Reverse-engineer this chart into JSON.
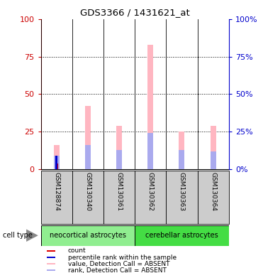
{
  "title": "GDS3366 / 1431621_at",
  "samples": [
    "GSM128874",
    "GSM130340",
    "GSM130361",
    "GSM130362",
    "GSM130363",
    "GSM130364"
  ],
  "value_absent": [
    16,
    42,
    29,
    83,
    25,
    29
  ],
  "rank_absent": [
    9,
    16,
    13,
    24,
    13,
    12
  ],
  "count_values": [
    4,
    0,
    0,
    0,
    0,
    0
  ],
  "percentile_rank": [
    9,
    0,
    0,
    0,
    0,
    0
  ],
  "cell_types": [
    {
      "label": "neocortical astrocytes",
      "color": "#90EE90",
      "start": 0,
      "end": 3
    },
    {
      "label": "cerebellar astrocytes",
      "color": "#44DD44",
      "start": 3,
      "end": 6
    }
  ],
  "bar_color_value_absent": "#FFB6C1",
  "bar_color_rank_absent": "#AAAAEE",
  "bar_color_count": "#DD0000",
  "bar_color_percentile": "#0000CC",
  "ylim_left": [
    0,
    100
  ],
  "ylim_right": [
    0,
    100
  ],
  "yticks_left": [
    0,
    25,
    50,
    75,
    100
  ],
  "yticks_right": [
    0,
    25,
    50,
    75,
    100
  ],
  "left_axis_color": "#CC0000",
  "right_axis_color": "#0000CC",
  "sample_box_color": "#CCCCCC",
  "figsize": [
    3.71,
    3.84
  ],
  "dpi": 100
}
